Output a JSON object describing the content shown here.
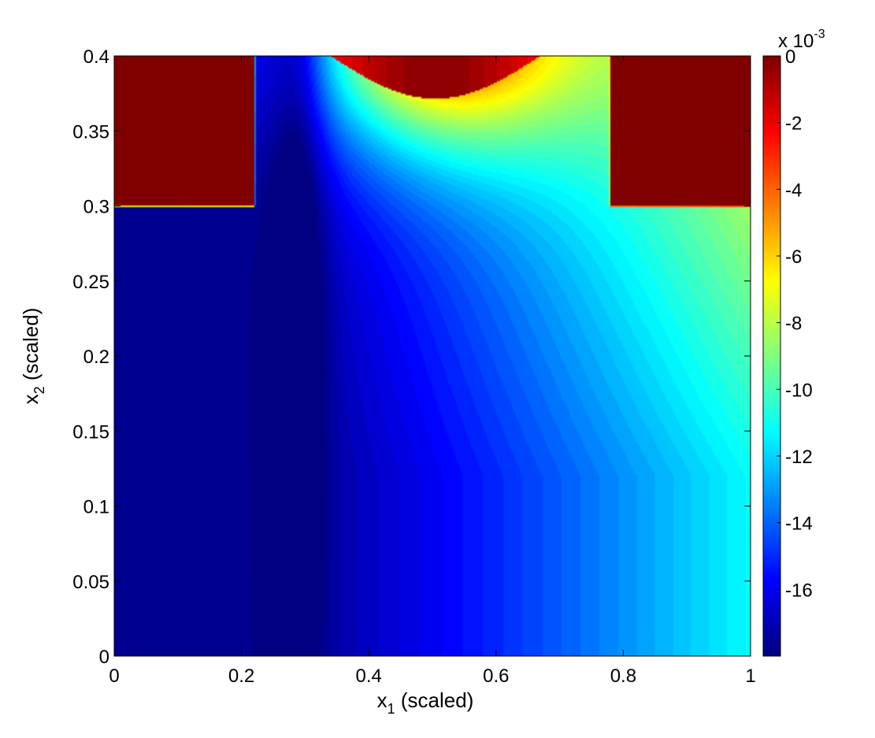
{
  "chart_data": {
    "type": "heatmap",
    "title": "",
    "xlabel": {
      "base": "x",
      "sub": "1",
      "suffix": " (scaled)"
    },
    "ylabel": {
      "base": "x",
      "sub": "2",
      "suffix": " (scaled)"
    },
    "xlim": [
      0,
      1
    ],
    "ylim": [
      0,
      0.4
    ],
    "x_ticks": [
      0,
      0.2,
      0.4,
      0.6,
      0.8,
      1
    ],
    "x_tick_labels": [
      "0",
      "0.2",
      "0.4",
      "0.6",
      "0.8",
      "1"
    ],
    "y_ticks": [
      0,
      0.05,
      0.1,
      0.15,
      0.2,
      0.25,
      0.3,
      0.35,
      0.4
    ],
    "y_tick_labels": [
      "0",
      "0.05",
      "0.1",
      "0.15",
      "0.2",
      "0.25",
      "0.3",
      "0.35",
      "0.4"
    ],
    "colormap": "jet",
    "colorbar": {
      "range": [
        -0.018,
        0
      ],
      "ticks": [
        0,
        -2,
        -4,
        -6,
        -8,
        -10,
        -12,
        -14,
        -16
      ],
      "tick_labels": [
        "0",
        "-2",
        "-4",
        "-6",
        "-8",
        "-10",
        "-12",
        "-14",
        "-16"
      ],
      "exponent_label": {
        "prefix": "x 10",
        "power": "-3"
      }
    },
    "regions": [
      {
        "name": "left-block",
        "x": [
          0,
          0.22
        ],
        "y": [
          0.3,
          0.4
        ],
        "value": 0
      },
      {
        "name": "right-block",
        "x": [
          0.78,
          1
        ],
        "y": [
          0.3,
          0.4
        ],
        "value": 0
      },
      {
        "name": "top-center-hotspot",
        "x": [
          0.35,
          0.66
        ],
        "y": [
          0.37,
          0.4
        ],
        "value": -0.0005
      }
    ],
    "value_samples": [
      {
        "x": 0.1,
        "y": 0.05,
        "value": -0.0178
      },
      {
        "x": 0.28,
        "y": 0.3,
        "value": -0.0175
      },
      {
        "x": 0.45,
        "y": 0.05,
        "value": -0.0162
      },
      {
        "x": 0.7,
        "y": 0.05,
        "value": -0.0138
      },
      {
        "x": 0.95,
        "y": 0.05,
        "value": -0.0125
      },
      {
        "x": 0.9,
        "y": 0.2,
        "value": -0.0108
      },
      {
        "x": 0.7,
        "y": 0.35,
        "value": -0.0085
      },
      {
        "x": 0.55,
        "y": 0.36,
        "value": -0.0065
      }
    ]
  }
}
